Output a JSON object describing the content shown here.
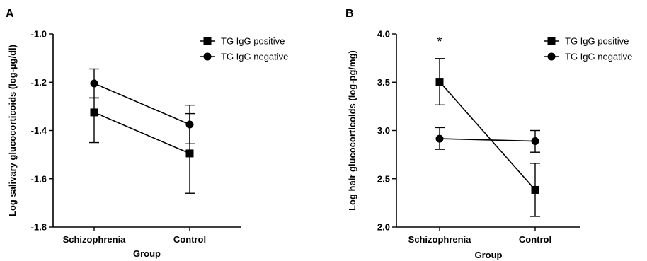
{
  "chart_data": [
    {
      "panel_label": "A",
      "type": "line",
      "categories": [
        "Schizophrenia",
        "Control"
      ],
      "xlabel": "Group",
      "ylabel": "Log salivary glucocorticoids (log-µg/dl)",
      "ylim": [
        -1.8,
        -1.0
      ],
      "yticks": [
        -1.8,
        -1.6,
        -1.4,
        -1.2,
        -1.0
      ],
      "ytick_labels": [
        "-1.8",
        "-1.6",
        "-1.4",
        "-1.2",
        "-1.0"
      ],
      "legend_position": "top-right",
      "series": [
        {
          "name": "TG IgG positive",
          "marker": "square",
          "values": [
            -1.325,
            -1.495
          ],
          "err_low": [
            -1.45,
            -1.66
          ],
          "err_high": [
            -1.265,
            -1.33
          ]
        },
        {
          "name": "TG IgG negative",
          "marker": "circle",
          "values": [
            -1.205,
            -1.375
          ],
          "err_low": [
            -1.265,
            -1.455
          ],
          "err_high": [
            -1.145,
            -1.295
          ]
        }
      ],
      "annotations": []
    },
    {
      "panel_label": "B",
      "type": "line",
      "categories": [
        "Schizophrenia",
        "Control"
      ],
      "xlabel": "Group",
      "ylabel": "Log hair glucocorticoids (log-pg/mg)",
      "ylim": [
        2.0,
        4.0
      ],
      "yticks": [
        2.0,
        2.5,
        3.0,
        3.5,
        4.0
      ],
      "ytick_labels": [
        "2.0",
        "2.5",
        "3.0",
        "3.5",
        "4.0"
      ],
      "legend_position": "top-right",
      "series": [
        {
          "name": "TG IgG positive",
          "marker": "square",
          "values": [
            3.505,
            2.385
          ],
          "err_low": [
            3.265,
            2.11
          ],
          "err_high": [
            3.745,
            2.66
          ]
        },
        {
          "name": "TG IgG negative",
          "marker": "circle",
          "values": [
            2.915,
            2.89
          ],
          "err_low": [
            2.805,
            2.775
          ],
          "err_high": [
            3.03,
            3.0
          ]
        }
      ],
      "annotations": [
        {
          "text": "*",
          "category": "Schizophrenia",
          "y": 3.95
        }
      ]
    }
  ]
}
